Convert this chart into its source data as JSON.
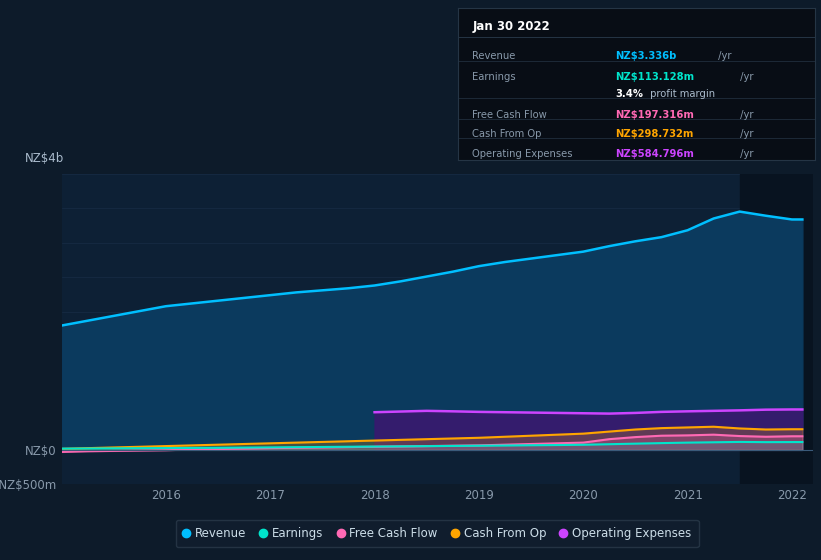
{
  "bg_color": "#0d1b2a",
  "plot_bg_color": "#0d2035",
  "grid_color": "#1e3550",
  "years": [
    2015.0,
    2015.25,
    2015.5,
    2015.75,
    2016.0,
    2016.25,
    2016.5,
    2016.75,
    2017.0,
    2017.25,
    2017.5,
    2017.75,
    2018.0,
    2018.25,
    2018.5,
    2018.75,
    2019.0,
    2019.25,
    2019.5,
    2019.75,
    2020.0,
    2020.25,
    2020.5,
    2020.75,
    2021.0,
    2021.25,
    2021.5,
    2021.75,
    2022.0,
    2022.1
  ],
  "revenue": [
    1800,
    1870,
    1940,
    2010,
    2080,
    2120,
    2160,
    2200,
    2240,
    2280,
    2310,
    2340,
    2380,
    2440,
    2510,
    2580,
    2660,
    2720,
    2770,
    2820,
    2870,
    2950,
    3020,
    3080,
    3180,
    3350,
    3450,
    3390,
    3336,
    3336
  ],
  "earnings": [
    18,
    20,
    22,
    24,
    26,
    28,
    30,
    33,
    36,
    39,
    42,
    45,
    48,
    51,
    54,
    57,
    60,
    63,
    67,
    70,
    74,
    82,
    90,
    98,
    105,
    110,
    115,
    112,
    113,
    113
  ],
  "free_cash_flow": [
    -30,
    -20,
    -15,
    -10,
    -5,
    5,
    12,
    18,
    25,
    30,
    35,
    40,
    45,
    50,
    55,
    60,
    65,
    75,
    85,
    95,
    105,
    155,
    185,
    205,
    210,
    220,
    200,
    190,
    197,
    197
  ],
  "cash_from_op": [
    15,
    25,
    35,
    45,
    55,
    65,
    75,
    85,
    95,
    105,
    115,
    125,
    135,
    145,
    155,
    165,
    175,
    190,
    205,
    220,
    235,
    265,
    295,
    315,
    325,
    335,
    310,
    295,
    299,
    299
  ],
  "operating_expenses": [
    0,
    0,
    0,
    0,
    0,
    0,
    0,
    0,
    0,
    0,
    0,
    0,
    545,
    555,
    565,
    558,
    550,
    545,
    540,
    535,
    530,
    525,
    535,
    550,
    558,
    565,
    572,
    582,
    585,
    585
  ],
  "revenue_line_color": "#00bfff",
  "revenue_fill_color": "#0b3a5e",
  "earnings_line_color": "#00e5cc",
  "fcf_line_color": "#ff69b4",
  "cfo_line_color": "#ffa500",
  "opex_line_color": "#cc44ff",
  "opex_fill_color": "#3a1870",
  "ylim_min": -500,
  "ylim_max": 4000,
  "xlim_min": 2015.0,
  "xlim_max": 2022.2,
  "xticks": [
    2016,
    2017,
    2018,
    2019,
    2020,
    2021,
    2022
  ],
  "highlight_start": 2021.5,
  "highlight_color": "#081320",
  "legend_items": [
    {
      "label": "Revenue",
      "color": "#00bfff"
    },
    {
      "label": "Earnings",
      "color": "#00e5cc"
    },
    {
      "label": "Free Cash Flow",
      "color": "#ff69b4"
    },
    {
      "label": "Cash From Op",
      "color": "#ffa500"
    },
    {
      "label": "Operating Expenses",
      "color": "#cc44ff"
    }
  ],
  "tooltip_date": "Jan 30 2022",
  "tooltip_rows": [
    {
      "label": "Revenue",
      "value": "NZ$3.336b",
      "suffix": " /yr",
      "color": "#00bfff",
      "bold_pct": null
    },
    {
      "label": "Earnings",
      "value": "NZ$113.128m",
      "suffix": " /yr",
      "color": "#00e5cc",
      "bold_pct": null
    },
    {
      "label": "",
      "value": "3.4%",
      "suffix": " profit margin",
      "color": "#ffffff",
      "bold_pct": "3.4%"
    },
    {
      "label": "Free Cash Flow",
      "value": "NZ$197.316m",
      "suffix": " /yr",
      "color": "#ff69b4",
      "bold_pct": null
    },
    {
      "label": "Cash From Op",
      "value": "NZ$298.732m",
      "suffix": " /yr",
      "color": "#ffa500",
      "bold_pct": null
    },
    {
      "label": "Operating Expenses",
      "value": "NZ$584.796m",
      "suffix": " /yr",
      "color": "#cc44ff",
      "bold_pct": null
    }
  ]
}
